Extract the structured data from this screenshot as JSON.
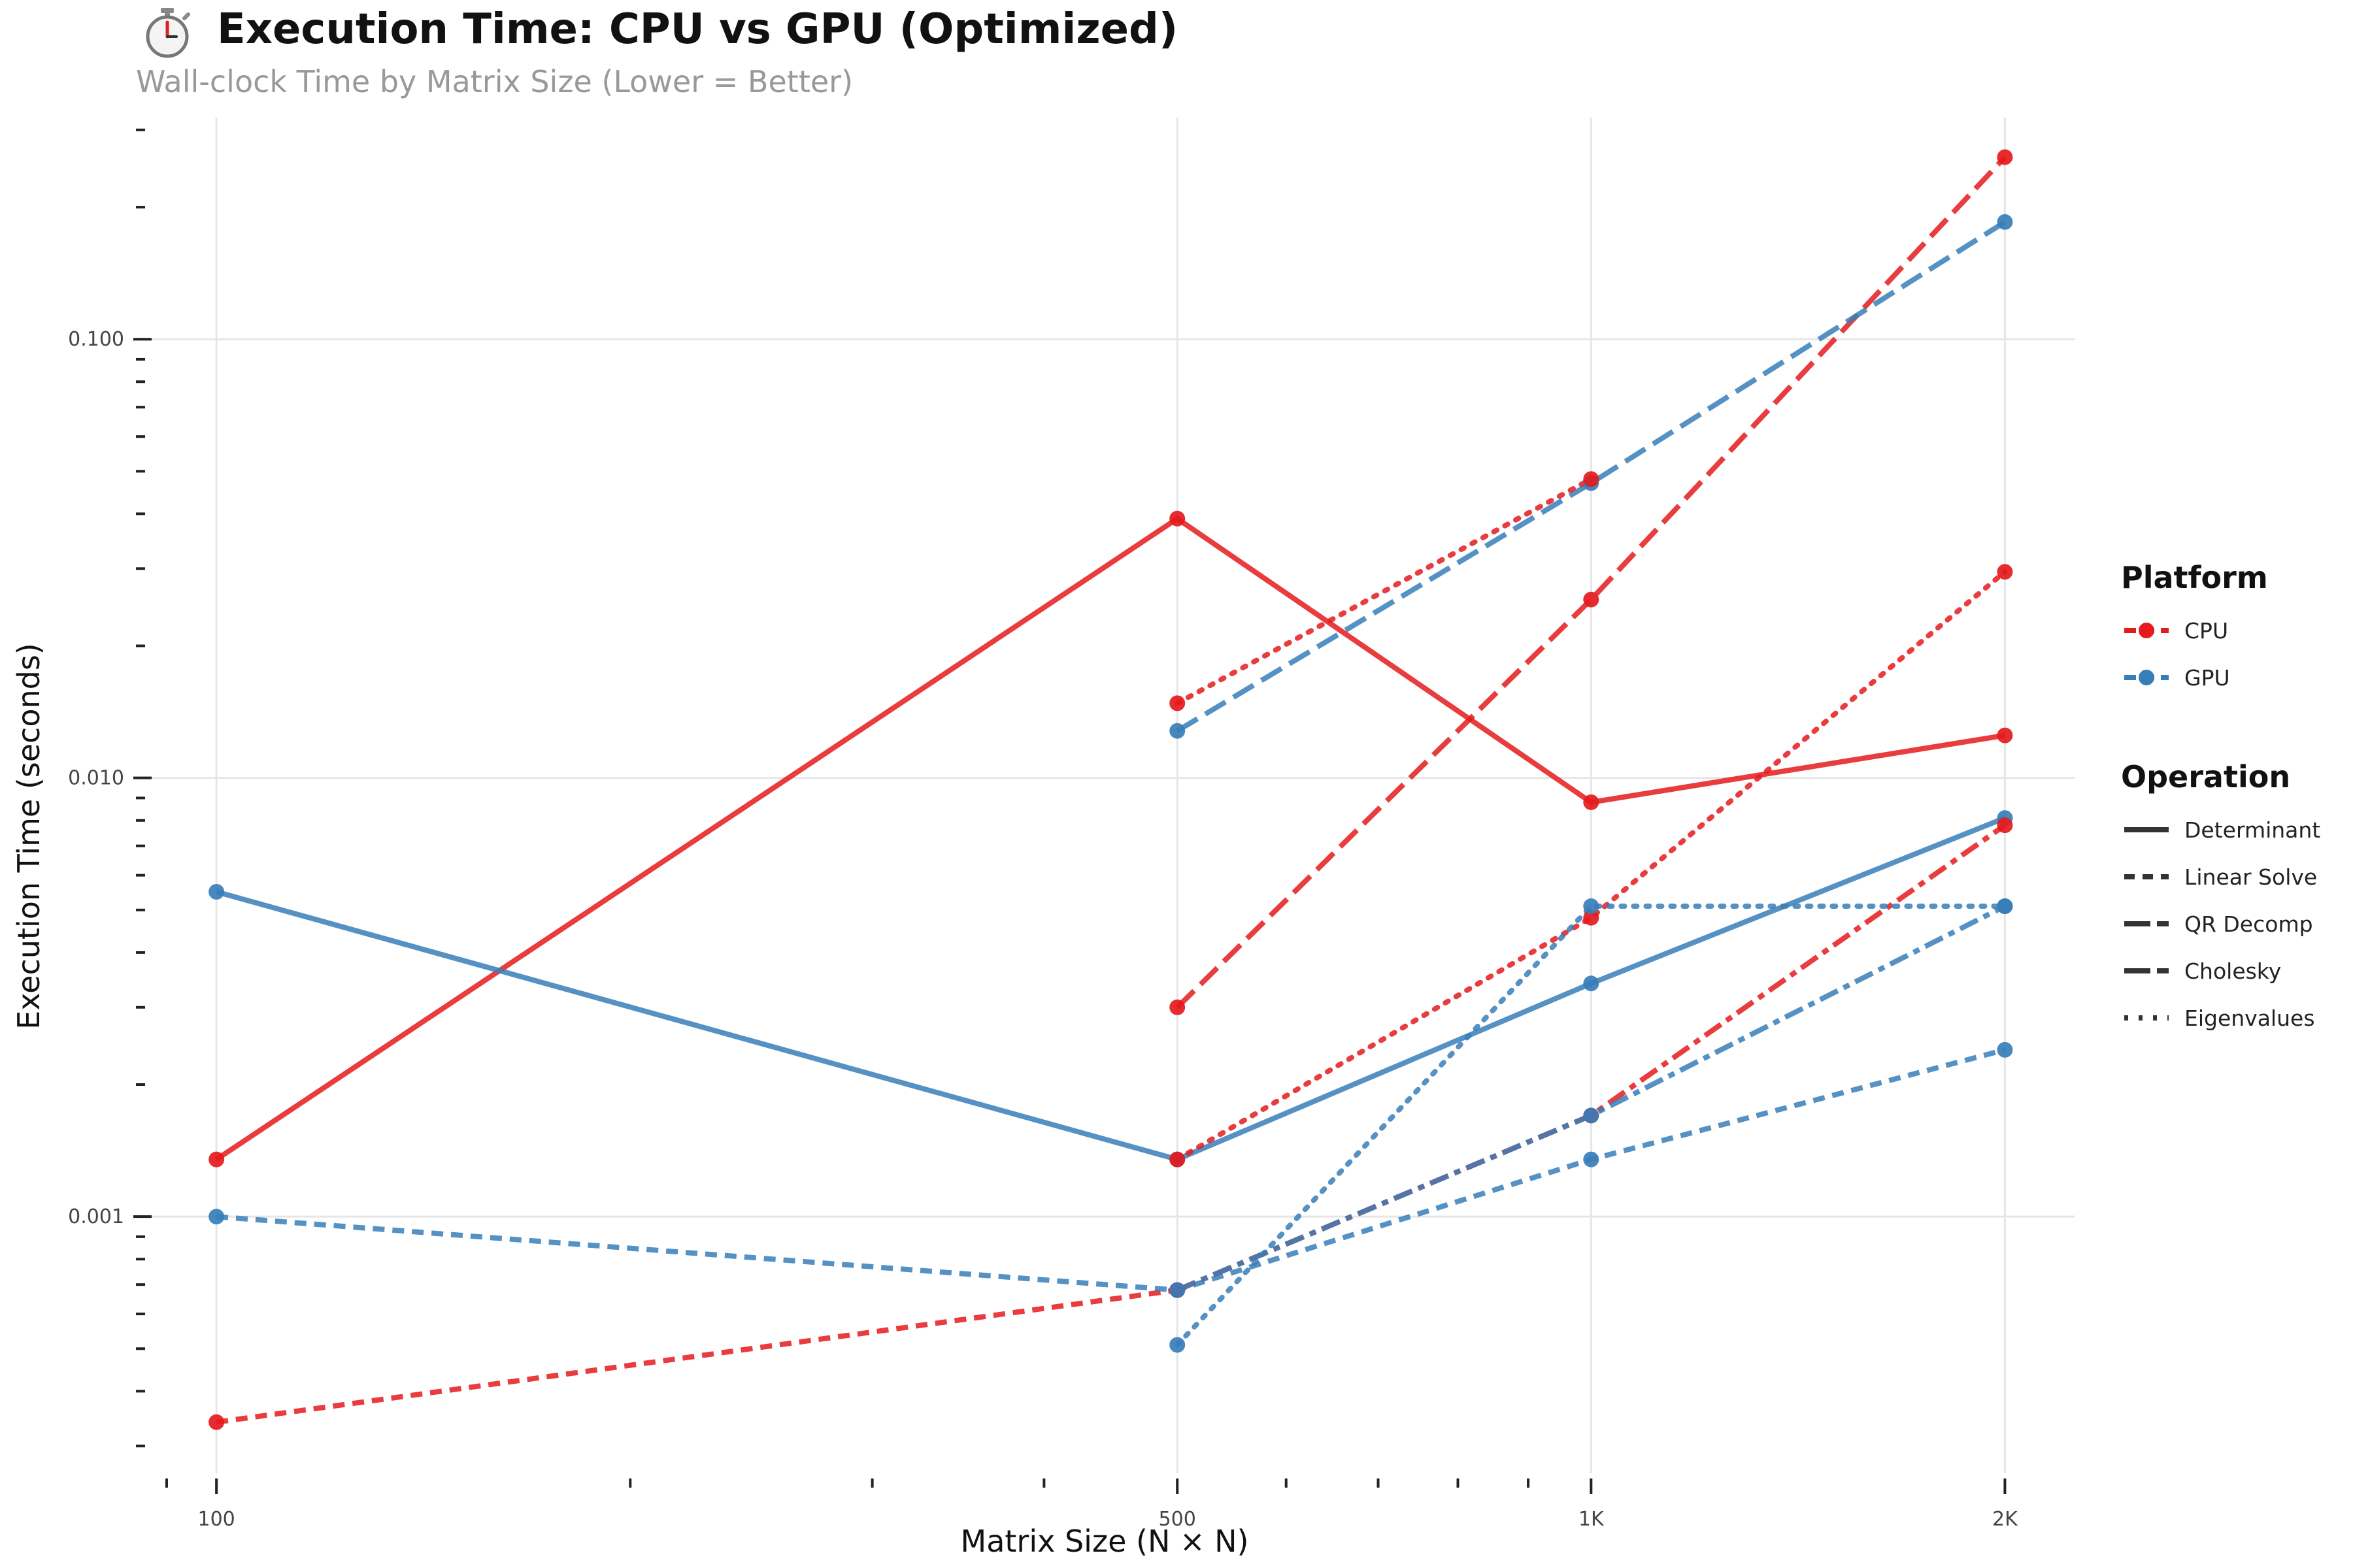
{
  "header": {
    "icon": "stopwatch-icon",
    "title": "Execution Time: CPU vs GPU (Optimized)",
    "subtitle": "Wall-clock Time by Matrix Size (Lower = Better)"
  },
  "chart_data": {
    "type": "line",
    "title": "Execution Time: CPU vs GPU (Optimized)",
    "subtitle": "Wall-clock Time by Matrix Size (Lower = Better)",
    "xlabel": "Matrix Size (N × N)",
    "ylabel": "Execution Time (seconds)",
    "x_scale": "log",
    "y_scale": "log",
    "xlim": [
      91,
      2250
    ],
    "ylim": [
      0.00026,
      0.32
    ],
    "x_ticks": [
      {
        "value": 100,
        "label": "100"
      },
      {
        "value": 500,
        "label": "500"
      },
      {
        "value": 1000,
        "label": "1K"
      },
      {
        "value": 2000,
        "label": "2K"
      }
    ],
    "y_ticks": [
      {
        "value": 0.001,
        "label": "0.001"
      },
      {
        "value": 0.01,
        "label": "0.010"
      },
      {
        "value": 0.1,
        "label": "0.100"
      }
    ],
    "grid": true,
    "legend_position": "right",
    "platform_legend": {
      "title": "Platform",
      "items": [
        {
          "label": "CPU",
          "color": "#e41a1c"
        },
        {
          "label": "GPU",
          "color": "#377eb8"
        }
      ]
    },
    "operation_legend": {
      "title": "Operation",
      "items": [
        {
          "label": "Determinant",
          "dash": "solid"
        },
        {
          "label": "Linear Solve",
          "dash": "dashed"
        },
        {
          "label": "QR Decomp",
          "dash": "longdash"
        },
        {
          "label": "Cholesky",
          "dash": "twodash"
        },
        {
          "label": "Eigenvalues",
          "dash": "dotted"
        }
      ]
    },
    "series": [
      {
        "platform": "CPU",
        "operation": "Determinant",
        "color": "#e41a1c",
        "dash": "solid",
        "x": [
          100,
          500,
          1000,
          2000
        ],
        "y": [
          0.00135,
          0.039,
          0.0088,
          0.0125
        ]
      },
      {
        "platform": "GPU",
        "operation": "Determinant",
        "color": "#377eb8",
        "dash": "solid",
        "x": [
          100,
          500,
          1000,
          2000
        ],
        "y": [
          0.0055,
          0.00135,
          0.0034,
          0.0081
        ]
      },
      {
        "platform": "CPU",
        "operation": "Linear Solve",
        "color": "#e41a1c",
        "dash": "dashed",
        "x": [
          100,
          500
        ],
        "y": [
          0.00034,
          0.00068
        ]
      },
      {
        "platform": "GPU",
        "operation": "Linear Solve",
        "color": "#377eb8",
        "dash": "dashed",
        "x": [
          100,
          500,
          1000,
          2000
        ],
        "y": [
          0.001,
          0.00068,
          0.00135,
          0.0024
        ]
      },
      {
        "platform": "CPU",
        "operation": "QR Decomp",
        "color": "#e41a1c",
        "dash": "longdash",
        "x": [
          500,
          1000,
          2000
        ],
        "y": [
          0.003,
          0.0255,
          0.26
        ]
      },
      {
        "platform": "GPU",
        "operation": "QR Decomp",
        "color": "#377eb8",
        "dash": "longdash",
        "x": [
          500,
          1000,
          2000
        ],
        "y": [
          0.0128,
          0.047,
          0.185
        ]
      },
      {
        "platform": "CPU",
        "operation": "Cholesky",
        "color": "#e41a1c",
        "dash": "twodash",
        "x": [
          500,
          1000,
          2000
        ],
        "y": [
          0.00068,
          0.0017,
          0.0078
        ]
      },
      {
        "platform": "GPU",
        "operation": "Cholesky",
        "color": "#377eb8",
        "dash": "twodash",
        "x": [
          500,
          1000,
          2000
        ],
        "y": [
          0.00068,
          0.0017,
          0.0051
        ]
      },
      {
        "platform": "CPU",
        "operation": "Eigenvalues",
        "color": "#e41a1c",
        "dash": "dotted",
        "x": [
          500,
          1000
        ],
        "y": [
          0.0148,
          0.048
        ]
      },
      {
        "platform": "CPU",
        "operation": "Eigenvalues",
        "color": "#e41a1c",
        "dash": "dotted",
        "x": [
          500,
          1000,
          2000
        ],
        "y": [
          0.00135,
          0.0048,
          0.0295
        ]
      },
      {
        "platform": "GPU",
        "operation": "Eigenvalues",
        "color": "#377eb8",
        "dash": "dotted",
        "x": [
          500,
          1000,
          2000
        ],
        "y": [
          0.00051,
          0.0051,
          0.0051
        ]
      }
    ]
  }
}
